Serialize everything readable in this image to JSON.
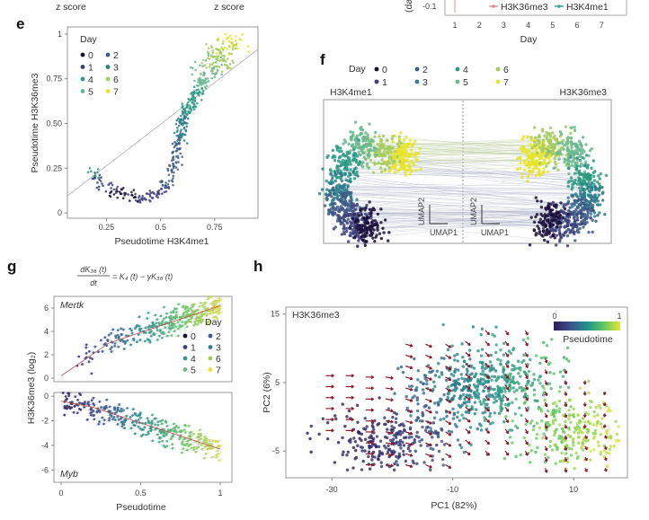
{
  "top_strip": {
    "zscore_left": "z score",
    "zscore_right": "z score",
    "ylabel_fragment": "(da",
    "y_tick": "-0.1",
    "x_ticks": [
      "1",
      "2",
      "3",
      "4",
      "5",
      "6",
      "7"
    ],
    "xlabel": "Day",
    "legend": [
      {
        "name": "H3K36me3",
        "color": "#e0909a"
      },
      {
        "name": "H3K4me1",
        "color": "#3aa89a"
      }
    ]
  },
  "day_colors": {
    "0": "#1b0f3a",
    "1": "#3d3f7c",
    "2": "#3f5b87",
    "3": "#2c7e8c",
    "4": "#2c9b84",
    "5": "#6ab98e",
    "6": "#a3cb5e",
    "7": "#e8e42c"
  },
  "panels": {
    "e": {
      "letter": "e"
    },
    "f": {
      "letter": "f"
    },
    "g": {
      "letter": "g"
    },
    "h": {
      "letter": "h"
    }
  },
  "chart_data": [
    {
      "id": "e",
      "type": "scatter",
      "xlabel": "Pseudotime H3K4me1",
      "ylabel": "Pseudotime H3K36me3",
      "xlim": [
        0.07,
        0.95
      ],
      "ylim": [
        -0.03,
        1.04
      ],
      "x_ticks": [
        "0.25",
        "0.5",
        "0.75"
      ],
      "x_tick_values": [
        0.25,
        0.5,
        0.75
      ],
      "y_ticks": [
        "0",
        "0.25",
        "0.50",
        "0.75",
        "1"
      ],
      "y_tick_values": [
        0,
        0.25,
        0.5,
        0.75,
        1
      ],
      "legend_title": "Day",
      "legend": [
        "0",
        "2",
        "1",
        "3",
        "4",
        "6",
        "5",
        "7"
      ],
      "legend_days": [
        0,
        2,
        1,
        3,
        4,
        6,
        5,
        7
      ],
      "reference_line": [
        [
          0.07,
          0.095
        ],
        [
          0.95,
          0.915
        ]
      ],
      "trajectory": [
        {
          "x": 0.17,
          "y": 0.24,
          "day": 4
        },
        {
          "x": 0.24,
          "y": 0.15,
          "day": 1
        },
        {
          "x": 0.33,
          "y": 0.1,
          "day": 0
        },
        {
          "x": 0.42,
          "y": 0.08,
          "day": 1
        },
        {
          "x": 0.5,
          "y": 0.12,
          "day": 1
        },
        {
          "x": 0.54,
          "y": 0.17,
          "day": 2
        },
        {
          "x": 0.57,
          "y": 0.3,
          "day": 2
        },
        {
          "x": 0.6,
          "y": 0.5,
          "day": 3
        },
        {
          "x": 0.65,
          "y": 0.63,
          "day": 4
        },
        {
          "x": 0.71,
          "y": 0.78,
          "day": 5
        },
        {
          "x": 0.77,
          "y": 0.87,
          "day": 6
        },
        {
          "x": 0.84,
          "y": 0.96,
          "day": 7
        }
      ]
    },
    {
      "id": "f",
      "type": "scatter",
      "legend_title": "Day",
      "legend": [
        "0",
        "2",
        "4",
        "6",
        "1",
        "3",
        "5",
        "7"
      ],
      "legend_days": [
        0,
        2,
        4,
        6,
        1,
        3,
        5,
        7
      ],
      "left_title": "H3K4me1",
      "right_title": "H3K36me3",
      "axis_x": "UMAP1",
      "axis_y": "UMAP2",
      "clusters_left": [
        {
          "day": 7,
          "cx": 0.55,
          "cy": 0.4
        },
        {
          "day": 6,
          "cx": 0.4,
          "cy": 0.35
        },
        {
          "day": 5,
          "cx": 0.25,
          "cy": 0.3
        },
        {
          "day": 4,
          "cx": 0.12,
          "cy": 0.45
        },
        {
          "day": 3,
          "cx": 0.08,
          "cy": 0.65
        },
        {
          "day": 2,
          "cx": 0.12,
          "cy": 0.8
        },
        {
          "day": 1,
          "cx": 0.2,
          "cy": 0.9
        },
        {
          "day": 0,
          "cx": 0.3,
          "cy": 0.92
        }
      ],
      "clusters_right": [
        {
          "day": 7,
          "cx": 0.5,
          "cy": 0.4
        },
        {
          "day": 6,
          "cx": 0.62,
          "cy": 0.3
        },
        {
          "day": 5,
          "cx": 0.78,
          "cy": 0.35
        },
        {
          "day": 4,
          "cx": 0.88,
          "cy": 0.55
        },
        {
          "day": 3,
          "cx": 0.9,
          "cy": 0.72
        },
        {
          "day": 2,
          "cx": 0.82,
          "cy": 0.85
        },
        {
          "day": 1,
          "cx": 0.7,
          "cy": 0.9
        },
        {
          "day": 0,
          "cx": 0.62,
          "cy": 0.88
        }
      ]
    },
    {
      "id": "g",
      "type": "scatter",
      "equation": {
        "lhs_num": "dK₃₆ (t)",
        "lhs_den": "dt",
        "rhs": "= K₄ (t) − γK₃₆ (t)"
      },
      "ylabel": "H3K36me3 (log₂)",
      "xlabel": "Pseudotime",
      "x_ticks": [
        "0",
        "0.5",
        "1"
      ],
      "x_tick_values": [
        0,
        0.5,
        1
      ],
      "legend_title": "Day",
      "legend": [
        "0",
        "2",
        "1",
        "3",
        "4",
        "6",
        "5",
        "7"
      ],
      "legend_days": [
        0,
        2,
        1,
        3,
        4,
        6,
        5,
        7
      ],
      "subplots": [
        {
          "gene": "Mertk",
          "ylim": [
            -0.3,
            7
          ],
          "y_ticks": [
            "6",
            "4",
            "2",
            "0"
          ],
          "y_tick_values": [
            6,
            4,
            2,
            0
          ],
          "trend": [
            [
              0,
              0.2
            ],
            [
              0.3,
              3.0
            ],
            [
              1,
              6.2
            ]
          ],
          "spread": 1.0
        },
        {
          "gene": "Myb",
          "ylim": [
            -7,
            0.3
          ],
          "y_ticks": [
            "0",
            "-2",
            "-4",
            "-6"
          ],
          "y_tick_values": [
            0,
            -2,
            -4,
            -6
          ],
          "trend": [
            [
              0,
              -0.4
            ],
            [
              0.2,
              -0.9
            ],
            [
              1,
              -4.3
            ]
          ],
          "spread": 0.9
        }
      ]
    },
    {
      "id": "h",
      "type": "scatter",
      "title": "H3K36me3",
      "xlabel": "PC1 (82%)",
      "ylabel": "PC2 (6%)",
      "xlim": [
        -37.6,
        18.9
      ],
      "ylim": [
        -8.9,
        16
      ],
      "x_ticks": [
        "-30",
        "-10",
        "10"
      ],
      "x_tick_values": [
        -30,
        -10,
        10
      ],
      "y_ticks": [
        "15",
        "5",
        "-5"
      ],
      "y_tick_values": [
        15,
        5,
        -5
      ],
      "colorbar": {
        "label": "Pseudotime",
        "min": "0",
        "max": "1"
      },
      "arrow_color": "#8b1a2b",
      "clouds": [
        {
          "pc1": -20,
          "pc2": -3.5,
          "pseudotime": 0.1
        },
        {
          "pc1": -8,
          "pc2": 3,
          "pseudotime": 0.45
        },
        {
          "pc1": -2,
          "pc2": 6,
          "pseudotime": 0.55
        },
        {
          "pc1": 10,
          "pc2": -2,
          "pseudotime": 0.85
        }
      ]
    }
  ]
}
